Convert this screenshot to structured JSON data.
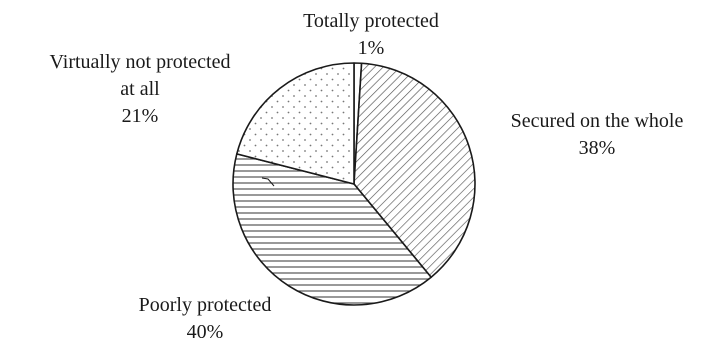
{
  "chart_data": {
    "type": "pie",
    "slices": [
      {
        "label_lines": [
          "Totally protected"
        ],
        "label": "Totally protected",
        "value": 1,
        "value_text": "1%",
        "pattern": "solid-white"
      },
      {
        "label_lines": [
          "Secured on the whole"
        ],
        "label": "Secured on the whole",
        "value": 38,
        "value_text": "38%",
        "pattern": "diagonal-hatch"
      },
      {
        "label_lines": [
          "Poorly protected"
        ],
        "label": "Poorly protected",
        "value": 40,
        "value_text": "40%",
        "pattern": "horizontal-lines"
      },
      {
        "label_lines": [
          "Virtually not protected",
          "at all"
        ],
        "label": "Virtually not protected at all",
        "value": 21,
        "value_text": "21%",
        "pattern": "dots"
      }
    ],
    "start_angle_deg": 0,
    "direction": "clockwise",
    "colors": {
      "stroke": "#1a1a1a",
      "fill": "#ffffff",
      "pattern": "#555555"
    }
  }
}
